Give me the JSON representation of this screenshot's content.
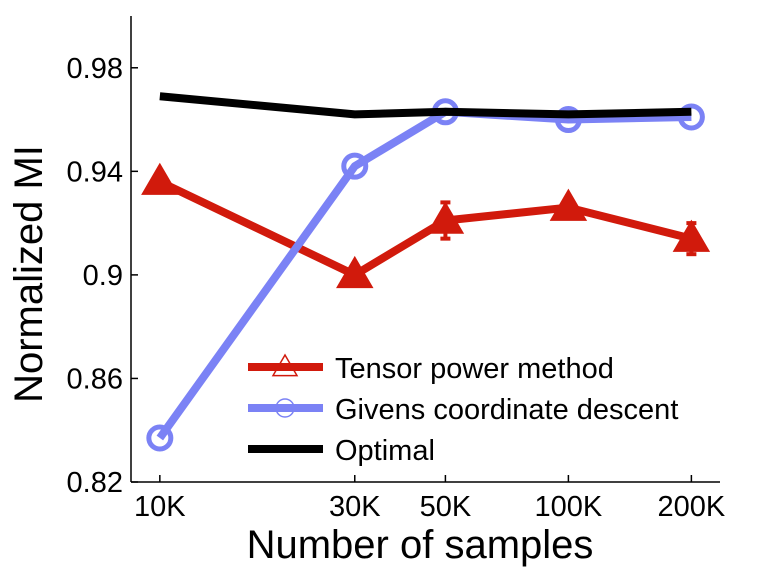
{
  "chart_data": {
    "type": "line",
    "xlabel": "Number of samples",
    "ylabel": "Normalized MI",
    "x_scale": "log",
    "xlim": [
      8500,
      235000
    ],
    "ylim": [
      0.82,
      1.0
    ],
    "x": [
      10000,
      30000,
      50000,
      100000,
      200000
    ],
    "x_tick_labels": [
      "10K",
      "30K",
      "50K",
      "100K",
      "200K"
    ],
    "y_ticks": [
      0.82,
      0.86,
      0.9,
      0.94,
      0.98
    ],
    "y_tick_labels": [
      "0.82",
      "0.86",
      "0.9",
      "0.94",
      "0.98"
    ],
    "grid": false,
    "legend_position": "bottom-right",
    "series": [
      {
        "name": "Tensor power method",
        "color": "#d11a0c",
        "marker": "triangle",
        "values": [
          0.936,
          0.9,
          0.921,
          0.926,
          0.914
        ],
        "error": [
          0,
          0,
          0.007,
          0.002,
          0.006
        ]
      },
      {
        "name": "Givens coordinate descent",
        "color": "#7b82f5",
        "marker": "circle",
        "values": [
          0.837,
          0.942,
          0.963,
          0.96,
          0.961
        ],
        "error": [
          0,
          0,
          0,
          0,
          0
        ]
      },
      {
        "name": "Optimal",
        "color": "#000000",
        "marker": "none",
        "values": [
          0.969,
          0.962,
          0.963,
          0.962,
          0.963
        ],
        "error": [
          0,
          0,
          0,
          0,
          0
        ]
      }
    ]
  }
}
